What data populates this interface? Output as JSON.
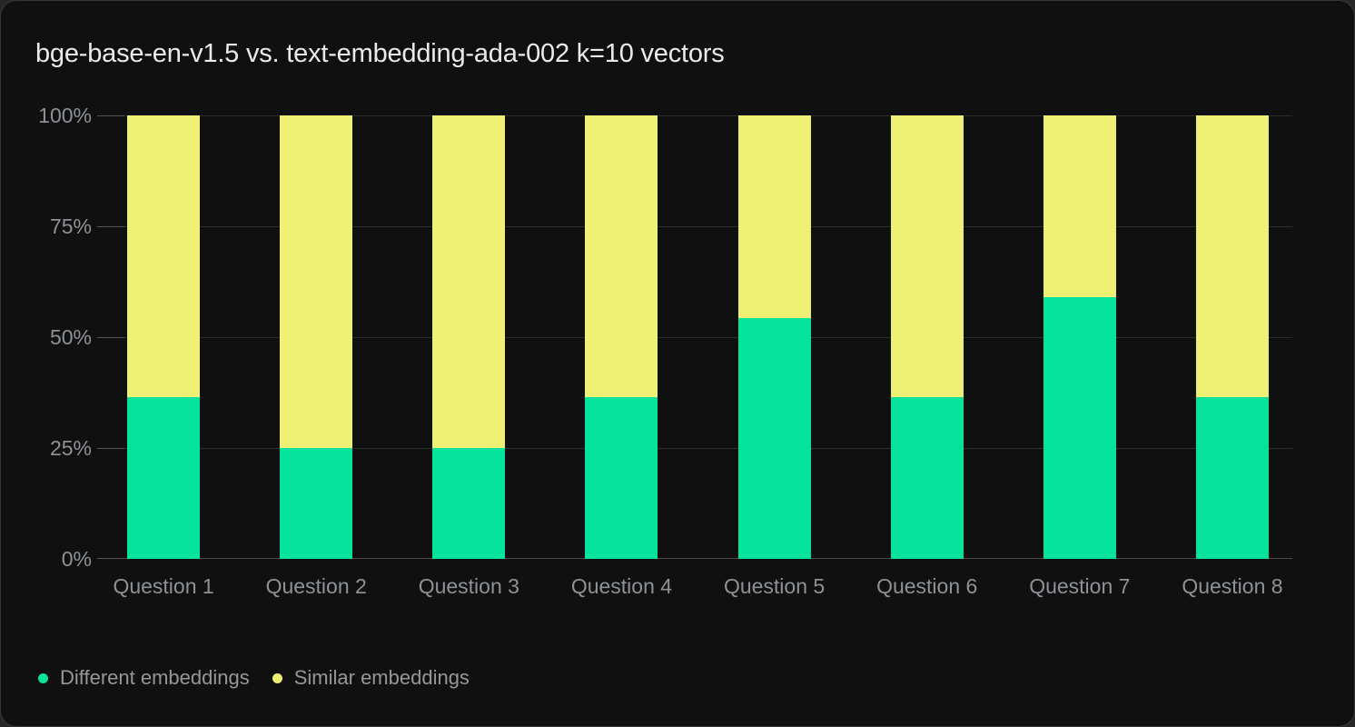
{
  "card": {
    "title": "bge-base-en-v1.5 vs. text-embedding-ada-002 k=10 vectors"
  },
  "chart_data": {
    "type": "bar",
    "stacked": true,
    "stack_unit": "percent",
    "title": "bge-base-en-v1.5 vs. text-embedding-ada-002 k=10 vectors",
    "categories": [
      "Question 1",
      "Question 2",
      "Question 3",
      "Question 4",
      "Question 5",
      "Question 6",
      "Question 7",
      "Question 8"
    ],
    "series": [
      {
        "name": "Different embeddings",
        "color": "#05e29b",
        "values": [
          36.5,
          25,
          25,
          36.5,
          54.3,
          36.5,
          59,
          36.5
        ]
      },
      {
        "name": "Similar embeddings",
        "color": "#eef073",
        "values": [
          63.5,
          75,
          75,
          63.5,
          45.7,
          63.5,
          41,
          63.5
        ]
      }
    ],
    "xlabel": "",
    "ylabel": "",
    "ylim": [
      0,
      100
    ],
    "y_ticks": [
      "100%",
      "75%",
      "50%",
      "25%",
      "0%"
    ],
    "grid": "horizontal",
    "legend_position": "bottom-left"
  },
  "theme": {
    "card_background": "#0f100f",
    "outer_background": "#272727",
    "title_color": "#e9ebe9",
    "axis_label_color": "#8e9297",
    "legend_label_color": "#97979b",
    "gridline_color": "#2b2b2b",
    "baseline_color": "#4a4a4a"
  }
}
